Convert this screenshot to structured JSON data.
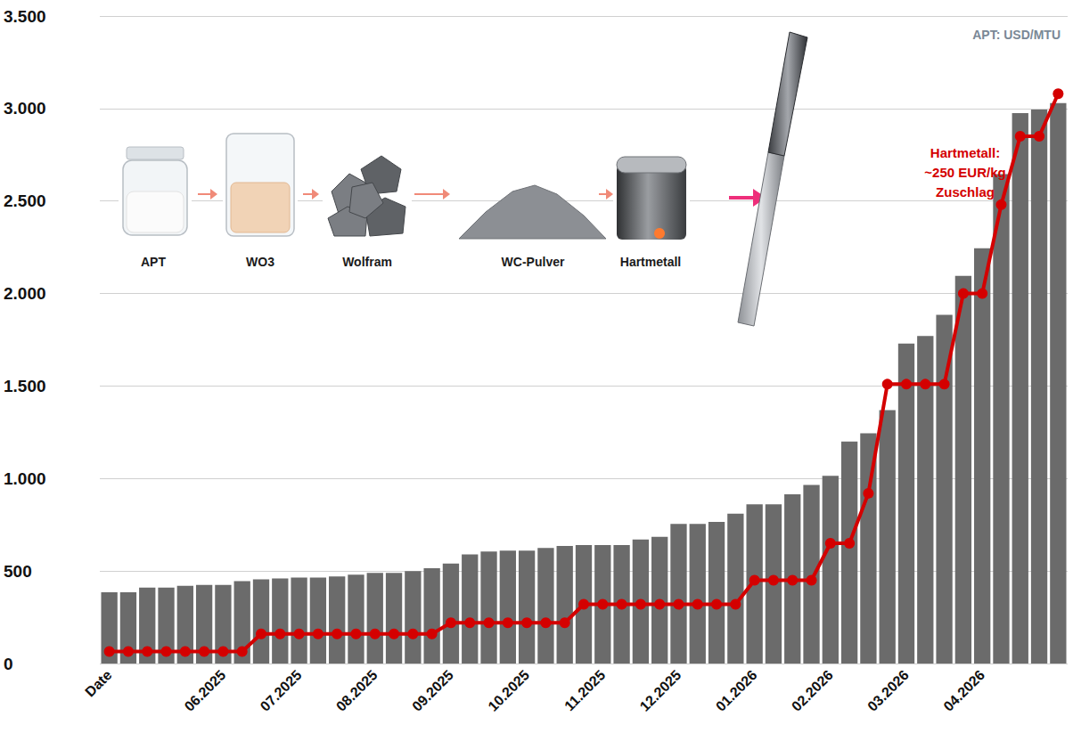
{
  "chart_data": {
    "type": "bar",
    "unit_label": "APT: USD/MTU",
    "process_steps": [
      "APT",
      "WO3",
      "Wolfram",
      "WC-Pulver",
      "Hartmetall"
    ],
    "annotations": [
      {
        "lines": [
          "Hartmetall:",
          "~250 EUR/kg",
          "Zuschlag"
        ],
        "color": "#d40000"
      }
    ],
    "categories": [
      "Date",
      null,
      null,
      null,
      null,
      null,
      "06.2025",
      null,
      null,
      null,
      "07.2025",
      null,
      null,
      null,
      "08.2025",
      null,
      null,
      null,
      "09.2025",
      null,
      null,
      null,
      "10.2025",
      null,
      null,
      null,
      "11.2025",
      null,
      null,
      null,
      "12.2025",
      null,
      null,
      null,
      "01.2026",
      null,
      null,
      null,
      "02.2026",
      null,
      null,
      null,
      "03.2026",
      null,
      null,
      null,
      "04.2026",
      null,
      null,
      null,
      null
    ],
    "series": [
      {
        "type": "bar",
        "color": "#6b6b6b",
        "values": [
          385,
          385,
          410,
          410,
          420,
          425,
          425,
          445,
          455,
          460,
          465,
          465,
          470,
          480,
          490,
          490,
          500,
          515,
          540,
          590,
          605,
          610,
          610,
          625,
          635,
          640,
          640,
          640,
          670,
          685,
          755,
          755,
          765,
          810,
          860,
          860,
          915,
          965,
          1015,
          1200,
          1245,
          1370,
          1730,
          1770,
          1885,
          2095,
          2245,
          2645,
          2975,
          2995,
          3030
        ]
      },
      {
        "type": "line",
        "color": "#d40000",
        "marker": "circle",
        "values": [
          65,
          65,
          65,
          65,
          65,
          65,
          65,
          65,
          160,
          160,
          160,
          160,
          160,
          160,
          160,
          160,
          160,
          160,
          220,
          220,
          220,
          220,
          220,
          220,
          220,
          320,
          320,
          320,
          320,
          320,
          320,
          320,
          320,
          320,
          450,
          450,
          450,
          450,
          650,
          650,
          920,
          1510,
          1510,
          1510,
          1510,
          2000,
          2000,
          2480,
          2850,
          2850,
          3080
        ]
      }
    ],
    "ylim": [
      0,
      3500
    ],
    "yticks": [
      0,
      500,
      {
        "value": 1000,
        "label": "1.000"
      },
      {
        "value": 1500,
        "label": "1.500"
      },
      {
        "value": 2000,
        "label": "2.000"
      },
      {
        "value": 2500,
        "label": "2.500"
      },
      {
        "value": 3000,
        "label": "3.000"
      },
      {
        "value": 3500,
        "label": "3.500"
      }
    ],
    "grid": true
  }
}
